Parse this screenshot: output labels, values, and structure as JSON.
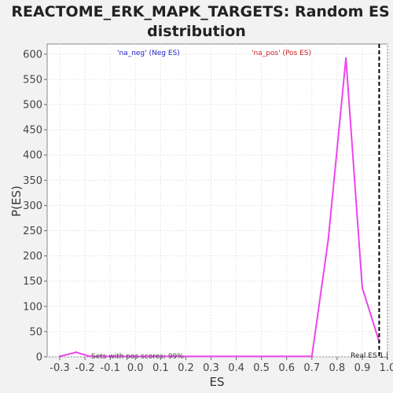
{
  "chart_data": {
    "type": "line",
    "title_lines": [
      "REACTOME_ERK_MAPK_TARGETS: Random ES",
      "distribution"
    ],
    "xlabel": "ES",
    "ylabel": "P(ES)",
    "xlim": [
      -0.35,
      1.0
    ],
    "ylim": [
      0,
      620
    ],
    "x_ticks": [
      -0.3,
      -0.2,
      -0.1,
      0.0,
      0.1,
      0.2,
      0.3,
      0.4,
      0.5,
      0.6,
      0.7,
      0.8,
      0.9,
      1.0
    ],
    "x_tick_labels": [
      "-0.3",
      "-0.2",
      "-0.1",
      "0.0",
      "0.1",
      "0.2",
      "0.3",
      "0.4",
      "0.5",
      "0.6",
      "0.7",
      "0.8",
      "0.9",
      "1.0"
    ],
    "y_ticks": [
      0,
      50,
      100,
      150,
      200,
      250,
      300,
      350,
      400,
      450,
      500,
      550,
      600
    ],
    "grid": true,
    "series": [
      {
        "color": "#ee44ee",
        "x": [
          -0.3,
          -0.235,
          -0.18,
          0.7,
          0.765,
          0.835,
          0.9,
          0.967
        ],
        "y": [
          1,
          9,
          1,
          1,
          232,
          592,
          137,
          30
        ]
      }
    ],
    "legend_items": [
      {
        "label": "'na_neg' (Neg ES)",
        "color": "#2222cc"
      },
      {
        "label": "'na_pos' (Pos ES)",
        "color": "#cc2222"
      }
    ],
    "real_es": {
      "x": 0.967,
      "label": "Real ES 1.|"
    },
    "bottom_annotation": "Sets with pos scores: 99%"
  }
}
